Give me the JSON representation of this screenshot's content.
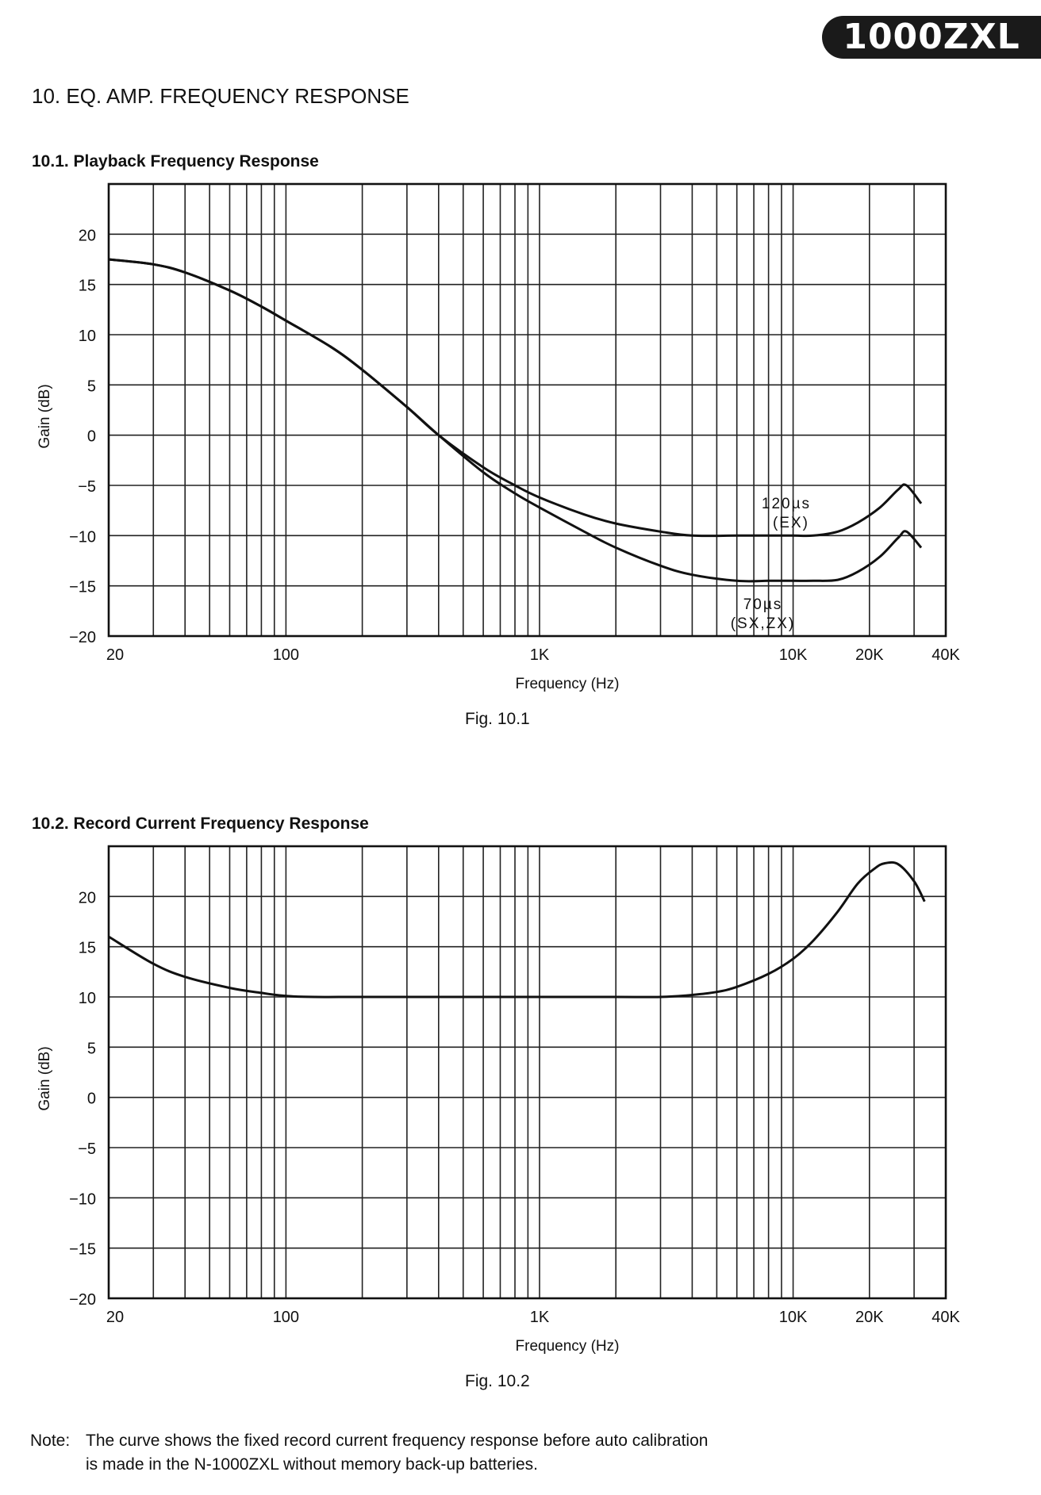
{
  "header": {
    "badge": "1000ZXL"
  },
  "section": {
    "title": "10.  EQ. AMP. FREQUENCY RESPONSE"
  },
  "fig1": {
    "heading": "10.1.  Playback Frequency Response",
    "caption": "Fig. 10.1"
  },
  "fig2": {
    "heading": "10.2.  Record Current Frequency Response",
    "caption": "Fig. 10.2"
  },
  "note": {
    "label": "Note:",
    "line1": "The curve shows the fixed record current frequency response before auto calibration",
    "line2": "is made in the N-1000ZXL without memory back-up batteries."
  },
  "chart_data": [
    {
      "type": "line",
      "title": "",
      "xlabel": "Frequency (Hz)",
      "ylabel": "Gain (dB)",
      "x_scale": "log",
      "xlim": [
        20,
        40000
      ],
      "ylim": [
        -20,
        25
      ],
      "x_ticks": [
        20,
        100,
        1000,
        10000,
        20000,
        40000
      ],
      "x_tick_labels": [
        "20",
        "100",
        "1K",
        "10K",
        "20K",
        "40K"
      ],
      "y_ticks": [
        20,
        15,
        10,
        5,
        0,
        -5,
        -10,
        -15,
        -20
      ],
      "y_tick_labels": [
        "20",
        "15",
        "10",
        "5",
        "0",
        "−5",
        "−10",
        "−15",
        "−20"
      ],
      "grid": true,
      "series": [
        {
          "name": "120µs (EX)",
          "label_lines": [
            "120µs",
            "(EX)"
          ],
          "x": [
            20,
            30,
            40,
            60,
            80,
            100,
            150,
            200,
            300,
            400,
            600,
            800,
            1000,
            1500,
            2000,
            3000,
            4000,
            6000,
            8000,
            10000,
            12000,
            15000,
            18000,
            22000,
            26000,
            28000,
            32000
          ],
          "y": [
            17.5,
            17.0,
            16.2,
            14.4,
            12.8,
            11.4,
            8.8,
            6.5,
            2.8,
            0.0,
            -3.2,
            -5.0,
            -6.2,
            -7.9,
            -8.8,
            -9.6,
            -10.0,
            -10.0,
            -10.0,
            -10.0,
            -10.0,
            -9.6,
            -8.7,
            -7.2,
            -5.4,
            -5.0,
            -6.8
          ]
        },
        {
          "name": "70µs (SX,ZX)",
          "label_lines": [
            "70µs",
            "(SX,ZX)"
          ],
          "x": [
            20,
            30,
            40,
            60,
            80,
            100,
            150,
            200,
            300,
            400,
            600,
            800,
            1000,
            1500,
            2000,
            3000,
            4000,
            6000,
            8000,
            10000,
            12000,
            15000,
            18000,
            22000,
            26000,
            28000,
            32000
          ],
          "y": [
            17.5,
            17.0,
            16.2,
            14.4,
            12.8,
            11.4,
            8.8,
            6.5,
            2.8,
            0.0,
            -3.7,
            -5.8,
            -7.2,
            -9.6,
            -11.2,
            -13.0,
            -13.9,
            -14.5,
            -14.5,
            -14.5,
            -14.5,
            -14.4,
            -13.6,
            -12.1,
            -10.2,
            -9.6,
            -11.2
          ]
        }
      ]
    },
    {
      "type": "line",
      "title": "",
      "xlabel": "Frequency (Hz)",
      "ylabel": "Gain (dB)",
      "x_scale": "log",
      "xlim": [
        20,
        40000
      ],
      "ylim": [
        -20,
        25
      ],
      "x_ticks": [
        20,
        100,
        1000,
        10000,
        20000,
        40000
      ],
      "x_tick_labels": [
        "20",
        "100",
        "1K",
        "10K",
        "20K",
        "40K"
      ],
      "y_ticks": [
        20,
        15,
        10,
        5,
        0,
        -5,
        -10,
        -15,
        -20
      ],
      "y_tick_labels": [
        "20",
        "15",
        "10",
        "5",
        "0",
        "−5",
        "−10",
        "−15",
        "−20"
      ],
      "grid": true,
      "series": [
        {
          "x": [
            20,
            30,
            40,
            60,
            80,
            100,
            130,
            200,
            500,
            1000,
            2000,
            3000,
            4000,
            5000,
            6000,
            8000,
            10000,
            12000,
            15000,
            18000,
            21000,
            23000,
            26000,
            30000,
            33000
          ],
          "y": [
            16.0,
            13.3,
            12.0,
            10.9,
            10.4,
            10.1,
            10.0,
            10.0,
            10.0,
            10.0,
            10.0,
            10.0,
            10.2,
            10.5,
            11.0,
            12.3,
            13.8,
            15.6,
            18.5,
            21.3,
            22.8,
            23.3,
            23.2,
            21.5,
            19.5
          ]
        }
      ]
    }
  ]
}
